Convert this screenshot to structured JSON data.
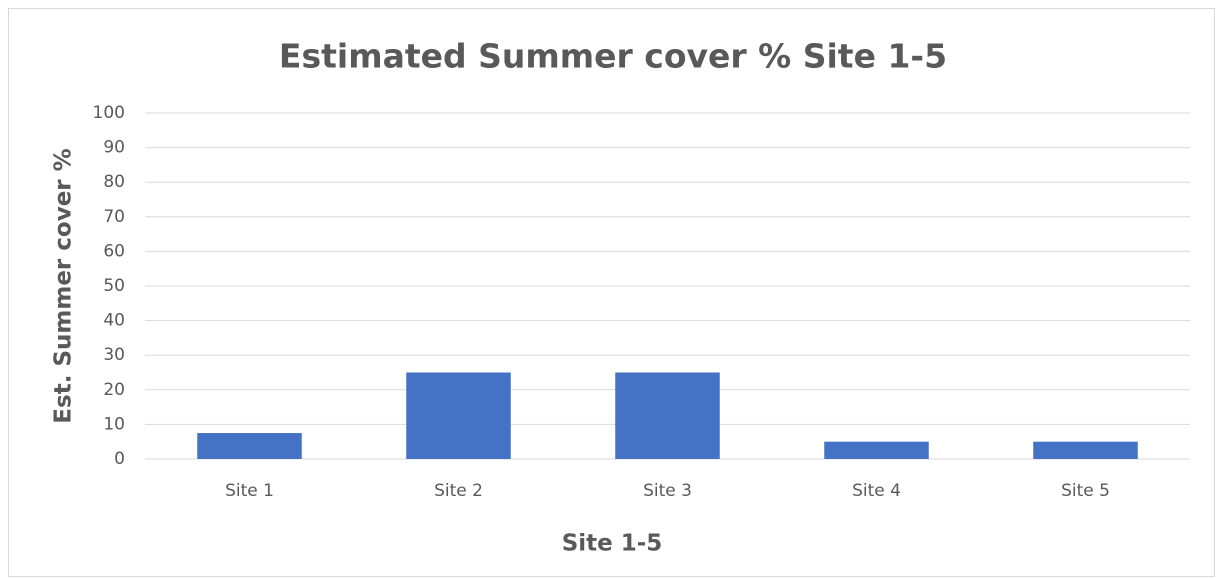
{
  "chart_data": {
    "type": "bar",
    "title": "Estimated Summer cover % Site 1-5",
    "x_label": "Site 1-5",
    "y_label": "Est. Summer cover %",
    "categories": [
      "Site 1",
      "Site 2",
      "Site 3",
      "Site 4",
      "Site 5"
    ],
    "values": [
      7.5,
      25,
      25,
      5,
      5
    ],
    "color": "#4472c4",
    "ylim": [
      0,
      100
    ],
    "yticks": [
      0,
      10,
      20,
      30,
      40,
      50,
      60,
      70,
      80,
      90,
      100
    ],
    "grid": true
  }
}
